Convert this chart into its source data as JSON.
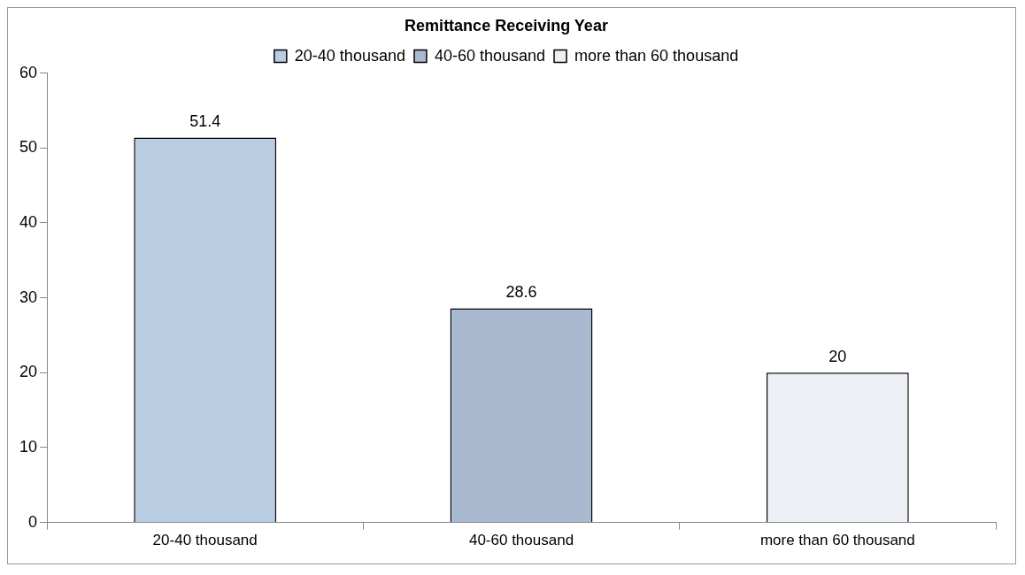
{
  "chart_data": {
    "type": "bar",
    "legend_title": "Remittance Receiving Year",
    "categories": [
      "20-40 thousand",
      "40-60 thousand",
      "more than 60 thousand"
    ],
    "series": [
      {
        "name": "20-40 thousand",
        "color": "#b9cde2",
        "values": [
          51.4,
          null,
          null
        ]
      },
      {
        "name": "40-60 thousand",
        "color": "#a9b9cf",
        "values": [
          null,
          28.6,
          null
        ]
      },
      {
        "name": "more than 60 thousand",
        "color": "#eceff3",
        "values": [
          null,
          null,
          20
        ]
      }
    ],
    "ylim": [
      0,
      60
    ],
    "yticks": [
      0,
      10,
      20,
      30,
      40,
      50,
      60
    ],
    "grid": false,
    "legend": "top",
    "data_labels": true
  }
}
